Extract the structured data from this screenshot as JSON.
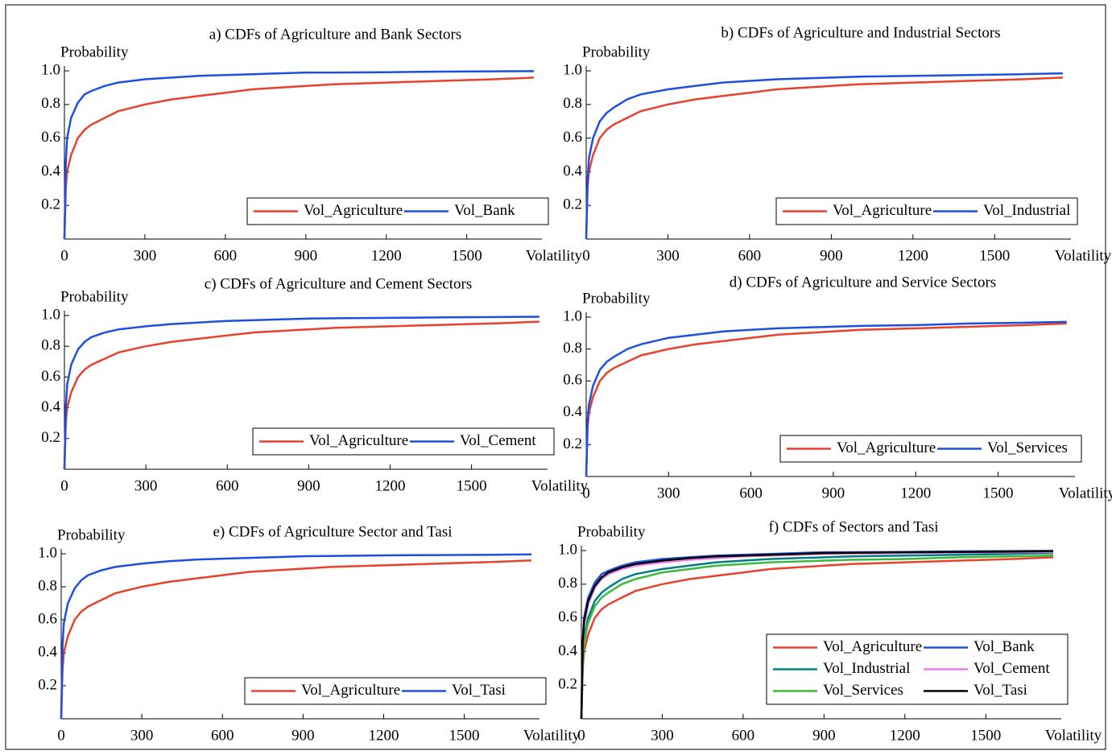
{
  "chart_data": [
    {
      "type": "line",
      "title": "a) CDFs of Agriculture and Bank Sectors",
      "x_label": "Volatility",
      "y_label": "Probability",
      "x": [
        0,
        5,
        10,
        25,
        50,
        75,
        100,
        150,
        200,
        300,
        400,
        500,
        600,
        700,
        800,
        900,
        1000,
        1200,
        1400,
        1600,
        1750
      ],
      "series": [
        {
          "name": "Vol_Agriculture",
          "color": "#e8412c",
          "values": [
            0,
            0.3,
            0.4,
            0.5,
            0.6,
            0.65,
            0.68,
            0.72,
            0.76,
            0.8,
            0.83,
            0.85,
            0.87,
            0.89,
            0.9,
            0.91,
            0.92,
            0.93,
            0.94,
            0.95,
            0.96
          ]
        },
        {
          "name": "Vol_Bank",
          "color": "#1f4fe0",
          "values": [
            0,
            0.45,
            0.6,
            0.72,
            0.81,
            0.86,
            0.88,
            0.91,
            0.93,
            0.95,
            0.96,
            0.97,
            0.975,
            0.98,
            0.985,
            0.99,
            0.99,
            0.992,
            0.995,
            0.997,
            0.998
          ]
        }
      ],
      "xlim": [
        0,
        1780
      ],
      "xticks": [
        0,
        300,
        600,
        900,
        1200,
        1500
      ],
      "ylim": [
        0,
        1
      ],
      "yticks": [
        0.2,
        0.4,
        0.6,
        0.8,
        {
          "value": 1,
          "label": "1.0"
        }
      ],
      "legend": "lower right",
      "legend_columns": 2
    },
    {
      "type": "line",
      "title": "b) CDFs of Agriculture and Industrial Sectors",
      "x_label": "Volatility",
      "y_label": "Probability",
      "x": [
        0,
        5,
        10,
        25,
        50,
        75,
        100,
        150,
        200,
        300,
        400,
        500,
        600,
        700,
        800,
        900,
        1000,
        1200,
        1400,
        1600,
        1750
      ],
      "series": [
        {
          "name": "Vol_Agriculture",
          "color": "#e8412c",
          "values": [
            0,
            0.3,
            0.4,
            0.5,
            0.6,
            0.65,
            0.68,
            0.72,
            0.76,
            0.8,
            0.83,
            0.85,
            0.87,
            0.89,
            0.9,
            0.91,
            0.92,
            0.93,
            0.94,
            0.95,
            0.96
          ]
        },
        {
          "name": "Vol_Industrial",
          "color": "#1f4fe0",
          "values": [
            0,
            0.35,
            0.48,
            0.6,
            0.7,
            0.75,
            0.78,
            0.83,
            0.86,
            0.89,
            0.91,
            0.93,
            0.94,
            0.95,
            0.955,
            0.96,
            0.965,
            0.97,
            0.975,
            0.98,
            0.985
          ]
        }
      ],
      "xlim": [
        0,
        1780
      ],
      "xticks": [
        0,
        300,
        600,
        900,
        1200,
        1500
      ],
      "ylim": [
        0,
        1
      ],
      "yticks": [
        0.2,
        0.4,
        0.6,
        0.8,
        {
          "value": 1,
          "label": "1.0"
        }
      ],
      "legend": "lower right",
      "legend_columns": 2
    },
    {
      "type": "line",
      "title": "c) CDFs of Agriculture and Cement Sectors",
      "x_label": "Volatility",
      "y_label": "Probability",
      "x": [
        0,
        5,
        10,
        25,
        50,
        75,
        100,
        150,
        200,
        300,
        400,
        500,
        600,
        700,
        800,
        900,
        1000,
        1200,
        1400,
        1600,
        1750
      ],
      "series": [
        {
          "name": "Vol_Agriculture",
          "color": "#e8412c",
          "values": [
            0,
            0.3,
            0.4,
            0.5,
            0.6,
            0.65,
            0.68,
            0.72,
            0.76,
            0.8,
            0.83,
            0.85,
            0.87,
            0.89,
            0.9,
            0.91,
            0.92,
            0.93,
            0.94,
            0.95,
            0.96
          ]
        },
        {
          "name": "Vol_Cement",
          "color": "#1f4fe0",
          "values": [
            0,
            0.4,
            0.55,
            0.68,
            0.78,
            0.83,
            0.86,
            0.89,
            0.91,
            0.93,
            0.945,
            0.955,
            0.965,
            0.97,
            0.975,
            0.98,
            0.982,
            0.985,
            0.988,
            0.99,
            0.992
          ]
        }
      ],
      "xlim": [
        0,
        1780
      ],
      "xticks": [
        0,
        300,
        600,
        900,
        1200,
        1500
      ],
      "ylim": [
        0,
        1
      ],
      "yticks": [
        0.2,
        0.4,
        0.6,
        0.8,
        {
          "value": 1,
          "label": "1.0"
        }
      ],
      "legend": "lower right",
      "legend_columns": 2
    },
    {
      "type": "line",
      "title": "d) CDFs of Agriculture and Service Sectors",
      "x_label": "Volatility",
      "y_label": "Probability",
      "x": [
        0,
        5,
        10,
        25,
        50,
        75,
        100,
        150,
        200,
        300,
        400,
        500,
        600,
        700,
        800,
        900,
        1000,
        1200,
        1400,
        1600,
        1750
      ],
      "series": [
        {
          "name": "Vol_Agriculture",
          "color": "#e8412c",
          "values": [
            0,
            0.3,
            0.4,
            0.5,
            0.6,
            0.65,
            0.68,
            0.72,
            0.76,
            0.8,
            0.83,
            0.85,
            0.87,
            0.89,
            0.9,
            0.91,
            0.92,
            0.93,
            0.94,
            0.95,
            0.96
          ]
        },
        {
          "name": "Vol_Services",
          "color": "#1f4fe0",
          "values": [
            0,
            0.35,
            0.45,
            0.57,
            0.67,
            0.72,
            0.75,
            0.8,
            0.83,
            0.87,
            0.89,
            0.91,
            0.92,
            0.93,
            0.935,
            0.94,
            0.945,
            0.95,
            0.96,
            0.965,
            0.97
          ]
        }
      ],
      "xlim": [
        0,
        1780
      ],
      "xticks": [
        0,
        300,
        600,
        900,
        1200,
        1500
      ],
      "ylim": [
        0,
        1
      ],
      "yticks": [
        0.2,
        0.4,
        0.6,
        0.8,
        {
          "value": 1,
          "label": "1.0"
        }
      ],
      "legend": "lower right",
      "legend_columns": 2
    },
    {
      "type": "line",
      "title": "e) CDFs of Agriculture Sector and Tasi",
      "x_label": "Volatility",
      "y_label": "Probability",
      "x": [
        0,
        5,
        10,
        25,
        50,
        75,
        100,
        150,
        200,
        300,
        400,
        500,
        600,
        700,
        800,
        900,
        1000,
        1200,
        1400,
        1600,
        1750
      ],
      "series": [
        {
          "name": "Vol_Agriculture",
          "color": "#e8412c",
          "values": [
            0,
            0.3,
            0.4,
            0.5,
            0.6,
            0.65,
            0.68,
            0.72,
            0.76,
            0.8,
            0.83,
            0.85,
            0.87,
            0.89,
            0.9,
            0.91,
            0.92,
            0.93,
            0.94,
            0.95,
            0.96
          ]
        },
        {
          "name": "Vol_Tasi",
          "color": "#1f4fe0",
          "values": [
            0,
            0.45,
            0.58,
            0.7,
            0.79,
            0.84,
            0.87,
            0.9,
            0.92,
            0.94,
            0.955,
            0.965,
            0.97,
            0.975,
            0.98,
            0.985,
            0.987,
            0.99,
            0.992,
            0.994,
            0.996
          ]
        }
      ],
      "xlim": [
        0,
        1780
      ],
      "xticks": [
        0,
        300,
        600,
        900,
        1200,
        1500
      ],
      "ylim": [
        0,
        1
      ],
      "yticks": [
        0.2,
        0.4,
        0.6,
        0.8,
        {
          "value": 1,
          "label": "1.0"
        }
      ],
      "legend": "lower right",
      "legend_columns": 2
    },
    {
      "type": "line",
      "title": "f) CDFs of Sectors and Tasi",
      "x_label": "Volatility",
      "y_label": "Probability",
      "x": [
        0,
        5,
        10,
        25,
        50,
        75,
        100,
        150,
        200,
        300,
        400,
        500,
        600,
        700,
        800,
        900,
        1000,
        1200,
        1400,
        1600,
        1750
      ],
      "series": [
        {
          "name": "Vol_Agriculture",
          "color": "#e8412c",
          "values": [
            0,
            0.3,
            0.4,
            0.5,
            0.6,
            0.65,
            0.68,
            0.72,
            0.76,
            0.8,
            0.83,
            0.85,
            0.87,
            0.89,
            0.9,
            0.91,
            0.92,
            0.93,
            0.94,
            0.95,
            0.96
          ]
        },
        {
          "name": "Vol_Bank",
          "color": "#1f4fe0",
          "values": [
            0,
            0.45,
            0.6,
            0.72,
            0.81,
            0.86,
            0.88,
            0.91,
            0.93,
            0.95,
            0.96,
            0.97,
            0.975,
            0.98,
            0.985,
            0.99,
            0.99,
            0.992,
            0.995,
            0.997,
            0.998
          ]
        },
        {
          "name": "Vol_Industrial",
          "color": "#008080",
          "values": [
            0,
            0.35,
            0.48,
            0.6,
            0.7,
            0.75,
            0.78,
            0.83,
            0.86,
            0.89,
            0.91,
            0.93,
            0.94,
            0.95,
            0.955,
            0.96,
            0.965,
            0.97,
            0.975,
            0.98,
            0.985
          ]
        },
        {
          "name": "Vol_Cement",
          "color": "#e67ee6",
          "values": [
            0,
            0.4,
            0.55,
            0.68,
            0.78,
            0.83,
            0.86,
            0.89,
            0.91,
            0.93,
            0.945,
            0.955,
            0.965,
            0.97,
            0.975,
            0.98,
            0.982,
            0.985,
            0.988,
            0.99,
            0.992
          ]
        },
        {
          "name": "Vol_Services",
          "color": "#3cb93c",
          "values": [
            0,
            0.35,
            0.45,
            0.57,
            0.67,
            0.72,
            0.75,
            0.8,
            0.83,
            0.87,
            0.89,
            0.91,
            0.92,
            0.93,
            0.935,
            0.94,
            0.945,
            0.95,
            0.96,
            0.965,
            0.97
          ]
        },
        {
          "name": "Vol_Tasi",
          "color": "#000000",
          "values": [
            0,
            0.45,
            0.58,
            0.7,
            0.79,
            0.84,
            0.87,
            0.9,
            0.92,
            0.94,
            0.955,
            0.965,
            0.97,
            0.975,
            0.98,
            0.985,
            0.987,
            0.99,
            0.992,
            0.994,
            0.996
          ]
        }
      ],
      "xlim": [
        0,
        1780
      ],
      "xticks": [
        0,
        300,
        600,
        900,
        1200,
        1500
      ],
      "ylim": [
        0,
        1
      ],
      "yticks": [
        0.2,
        0.4,
        0.6,
        0.8,
        {
          "value": 1,
          "label": "1.0"
        }
      ],
      "legend": "lower right",
      "legend_columns": 2
    }
  ]
}
